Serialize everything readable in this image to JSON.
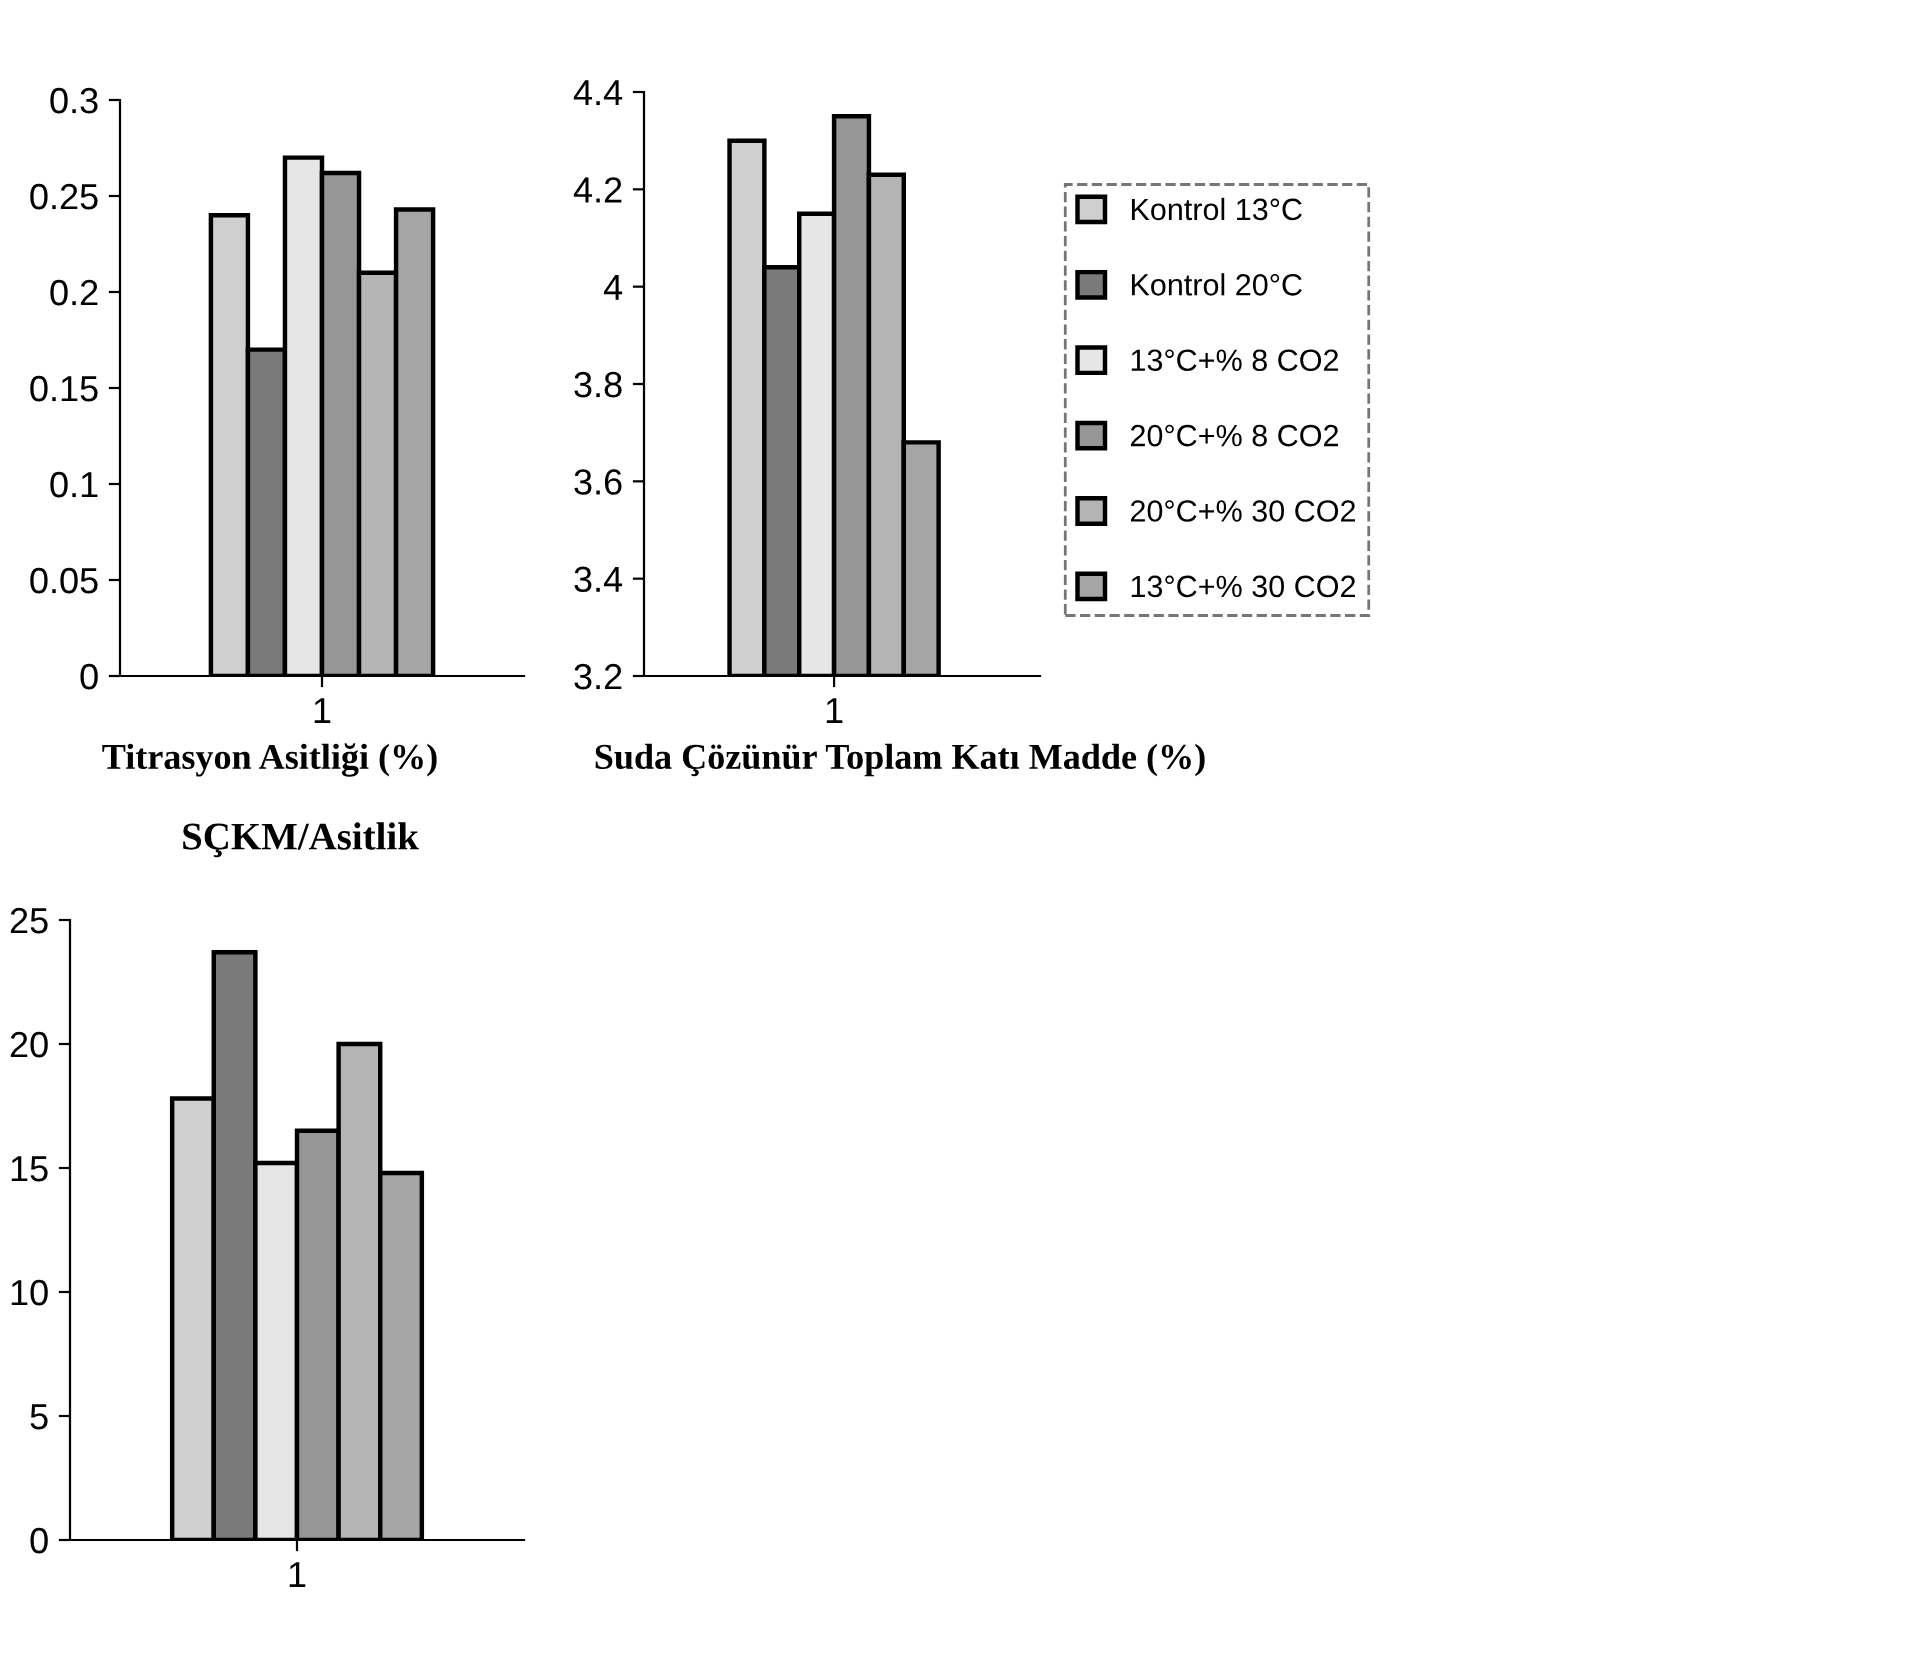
{
  "chart_data": [
    {
      "type": "bar",
      "title": "Titrasyon Asitliği (%)",
      "categories": [
        "1"
      ],
      "ylim": [
        0,
        0.3
      ],
      "yticks": [
        0,
        0.05,
        0.1,
        0.15,
        0.2,
        0.25,
        0.3
      ],
      "grid": false,
      "legend": false,
      "series": [
        {
          "color": "#cfcfcf",
          "values": [
            0.24
          ]
        },
        {
          "color": "#7a7a7a",
          "values": [
            0.17
          ]
        },
        {
          "color": "#e6e6e6",
          "values": [
            0.27
          ]
        },
        {
          "color": "#969696",
          "values": [
            0.262
          ]
        },
        {
          "color": "#b4b4b4",
          "values": [
            0.21
          ]
        },
        {
          "color": "#a5a5a5",
          "values": [
            0.243
          ]
        }
      ]
    },
    {
      "type": "bar",
      "title": "Suda Çözünür Toplam Katı Madde (%)",
      "categories": [
        "1"
      ],
      "ylim": [
        3.2,
        4.4
      ],
      "yticks": [
        3.2,
        3.4,
        3.6,
        3.8,
        4,
        4.2,
        4.4
      ],
      "grid": false,
      "legend": "right",
      "series": [
        {
          "name": "Kontrol 13°C",
          "color": "#cfcfcf",
          "values": [
            4.3
          ]
        },
        {
          "name": "Kontrol 20°C",
          "color": "#7a7a7a",
          "values": [
            4.04
          ]
        },
        {
          "name": "13°C+% 8 CO2",
          "color": "#e6e6e6",
          "values": [
            4.15
          ]
        },
        {
          "name": "20°C+% 8 CO2",
          "color": "#969696",
          "values": [
            4.35
          ]
        },
        {
          "name": "20°C+% 30 CO2",
          "color": "#b4b4b4",
          "values": [
            4.23
          ]
        },
        {
          "name": "13°C+% 30 CO2",
          "color": "#a5a5a5",
          "values": [
            3.68
          ]
        }
      ]
    },
    {
      "type": "bar",
      "title": "SÇKM/Asitlik",
      "categories": [
        "1"
      ],
      "ylim": [
        0,
        25
      ],
      "yticks": [
        0,
        5,
        10,
        15,
        20,
        25
      ],
      "grid": false,
      "legend": false,
      "series": [
        {
          "color": "#cfcfcf",
          "values": [
            17.8
          ]
        },
        {
          "color": "#7a7a7a",
          "values": [
            23.7
          ]
        },
        {
          "color": "#e6e6e6",
          "values": [
            15.2
          ]
        },
        {
          "color": "#969696",
          "values": [
            16.5
          ]
        },
        {
          "color": "#b4b4b4",
          "values": [
            20.0
          ]
        },
        {
          "color": "#a5a5a5",
          "values": [
            14.8
          ]
        }
      ]
    }
  ]
}
